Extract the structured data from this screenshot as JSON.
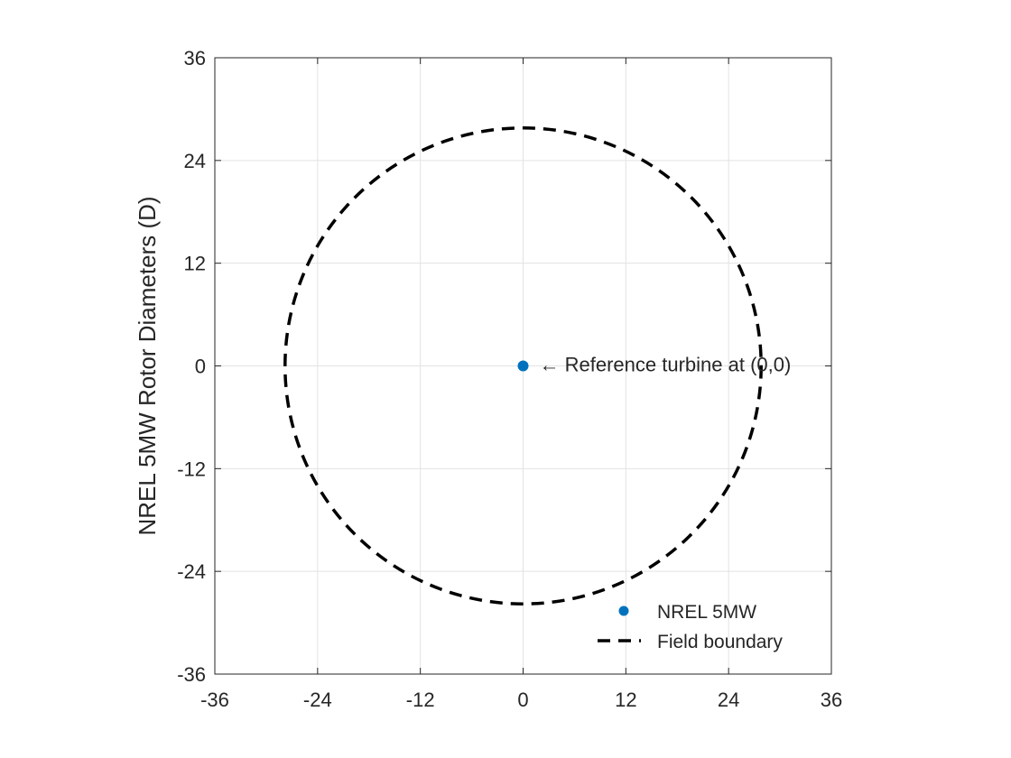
{
  "chart_data": {
    "type": "scatter",
    "title": "",
    "xlabel": "",
    "ylabel": "NREL 5MW Rotor Diameters (D)",
    "xlim": [
      -36,
      36
    ],
    "ylim": [
      -36,
      36
    ],
    "xticks": [
      -36,
      -24,
      -12,
      0,
      12,
      24,
      36
    ],
    "yticks": [
      -36,
      -24,
      -12,
      0,
      12,
      24,
      36
    ],
    "xtick_labels": [
      "-36",
      "-24",
      "-12",
      "0",
      "12",
      "24",
      "36"
    ],
    "ytick_labels": [
      "-36",
      "-24",
      "-12",
      "0",
      "12",
      "24",
      "36"
    ],
    "grid": true,
    "series": [
      {
        "name": "NREL 5MW",
        "kind": "scatter",
        "color": "#0072BD",
        "points": [
          {
            "x": 0,
            "y": 0
          }
        ]
      },
      {
        "name": "Field boundary",
        "kind": "circle-dashed",
        "color": "#000000",
        "center": {
          "x": 0,
          "y": 0
        },
        "radius": 27.8
      }
    ],
    "annotations": [
      {
        "text": "← Reference turbine at (0,0)",
        "x": 0,
        "y": 0
      }
    ],
    "legend_position": "bottom-right"
  }
}
